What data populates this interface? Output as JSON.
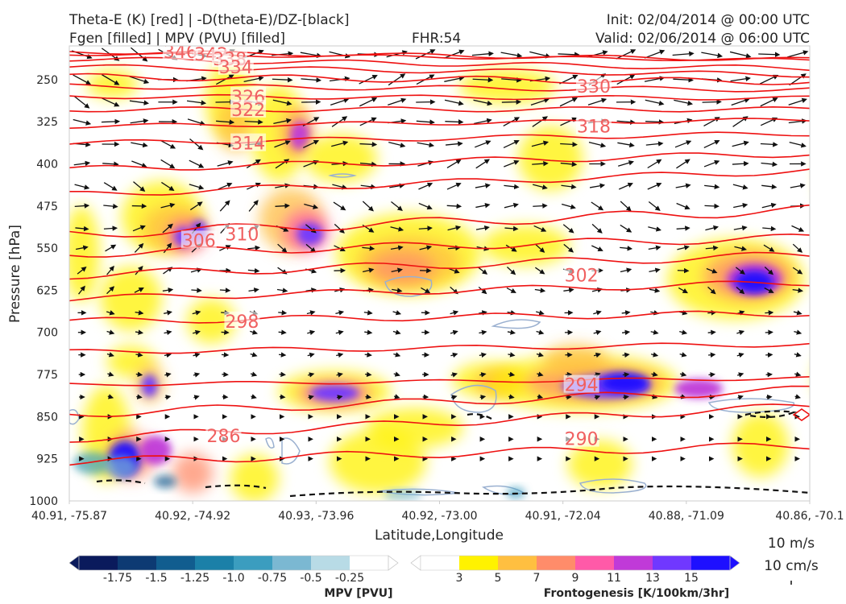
{
  "header": {
    "title_line1": "Theta-E (K) [red] | -D(theta-E)/DZ-[black]",
    "title_line2": "Fgen [filled] | MPV (PVU) [filled]",
    "fhr": "FHR:54",
    "init": "Init: 02/04/2014 @ 00:00 UTC",
    "valid": "Valid: 02/06/2014 @ 06:00 UTC"
  },
  "vector_key": {
    "label1": "10 m/s",
    "label2": "10 cm/s"
  },
  "colors": {
    "theta_e": "#ee1111",
    "wind_arrows": "#111111",
    "mpv_contour": "#9ab0d0",
    "fgen_scale": [
      "#ffffff",
      "#fff200",
      "#ffbf40",
      "#ff8c6a",
      "#ff5aa8",
      "#c03ad8",
      "#7038ff",
      "#1e10ff"
    ],
    "mpv_scale": [
      "#0a1a5c",
      "#0d3a73",
      "#115d8f",
      "#1b80a8",
      "#3b9dbf",
      "#7bb8d2",
      "#b8dbe6",
      "#ffffff"
    ]
  },
  "chart_data": {
    "type": "heatmap",
    "xlabel": "Latitude,Longitude",
    "ylabel": "Pressure [hPa]",
    "x_ticks": [
      "40.91, -75.87",
      "40.92, -74.92",
      "40.93, -73.96",
      "40.92, -73.00",
      "40.91, -72.04",
      "40.88, -71.09",
      "40.86, -70.1"
    ],
    "y_ticks": [
      250,
      325,
      400,
      475,
      550,
      625,
      700,
      775,
      850,
      925,
      1000
    ],
    "ylim": [
      1000,
      190
    ],
    "theta_e_contour_labels": [
      {
        "value": "346",
        "x_index": 0.9,
        "p": 200
      },
      {
        "value": "342",
        "x_index": 1.15,
        "p": 204
      },
      {
        "value": "338",
        "x_index": 1.3,
        "p": 213
      },
      {
        "value": "334",
        "x_index": 1.35,
        "p": 227
      },
      {
        "value": "326",
        "x_index": 1.45,
        "p": 280
      },
      {
        "value": "322",
        "x_index": 1.45,
        "p": 303
      },
      {
        "value": "314",
        "x_index": 1.45,
        "p": 363
      },
      {
        "value": "310",
        "x_index": 1.4,
        "p": 525
      },
      {
        "value": "306",
        "x_index": 1.05,
        "p": 536
      },
      {
        "value": "298",
        "x_index": 1.4,
        "p": 680
      },
      {
        "value": "286",
        "x_index": 1.25,
        "p": 884
      },
      {
        "value": "330",
        "x_index": 4.25,
        "p": 262
      },
      {
        "value": "318",
        "x_index": 4.25,
        "p": 333
      },
      {
        "value": "302",
        "x_index": 4.15,
        "p": 598
      },
      {
        "value": "294",
        "x_index": 4.15,
        "p": 793
      },
      {
        "value": "290",
        "x_index": 4.15,
        "p": 889
      }
    ],
    "mpv_colorbar": {
      "label": "MPV [PVU]",
      "ticks": [
        "-1.75",
        "-1.5",
        "-1.25",
        "-1.0",
        "-0.75",
        "-0.5",
        "-0.25"
      ]
    },
    "fgen_colorbar": {
      "label": "Frontogenesis [K/100km/3hr]",
      "ticks": [
        "3",
        "5",
        "7",
        "9",
        "11",
        "13",
        "15"
      ]
    }
  }
}
